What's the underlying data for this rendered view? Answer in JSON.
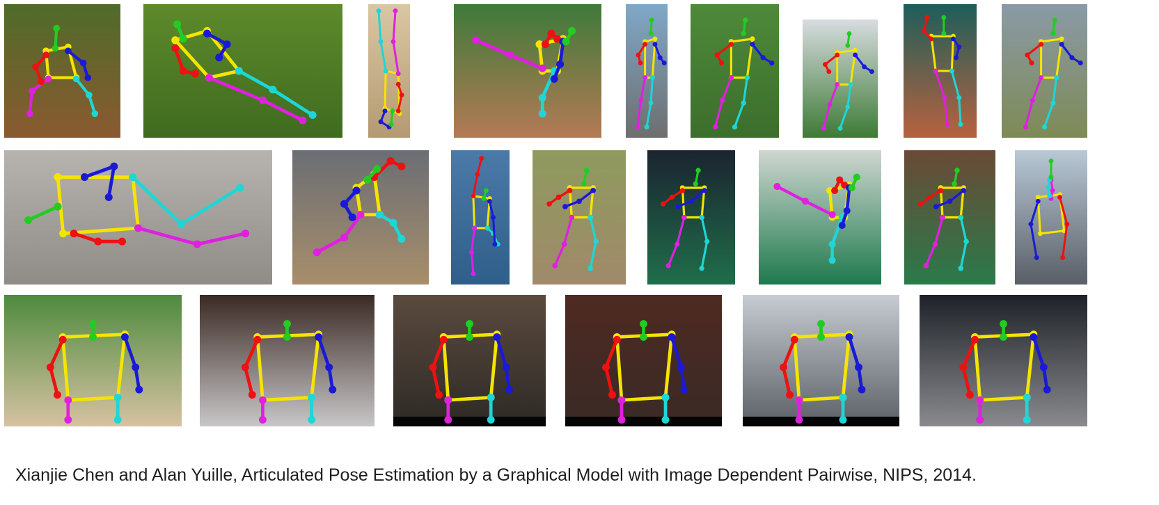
{
  "caption": "Xianjie Chen and Alan Yuille, Articulated Pose Estimation by a Graphical Model with Image Dependent Pairwise, NIPS, 2014.",
  "limb_colors": {
    "head": "#22cc22",
    "torso": "#f5e400",
    "right_arm": "#ee1111",
    "left_arm": "#1a1ad6",
    "right_leg": "#e020e0",
    "left_leg": "#1ed6d6"
  },
  "panels": [
    {
      "row": 1,
      "index": 1,
      "bg": [
        "#4f6b2a",
        "#8a5a30"
      ],
      "pose": "crouch"
    },
    {
      "row": 1,
      "index": 2,
      "bg": [
        "#5e8a2c",
        "#3f6b1f"
      ],
      "pose": "lying"
    },
    {
      "row": 1,
      "index": 3,
      "bg": [
        "#d9c7a3",
        "#b49a72"
      ],
      "pose": "inverted"
    },
    {
      "row": 1,
      "index": 4,
      "bg": [
        "#3e7a3a",
        "#b47a55"
      ],
      "pose": "kick"
    },
    {
      "row": 1,
      "index": 5,
      "bg": [
        "#7fa8c8",
        "#6e6e6e"
      ],
      "pose": "reach"
    },
    {
      "row": 1,
      "index": 6,
      "bg": [
        "#4e8a3a",
        "#3c6e2c"
      ],
      "pose": "reach"
    },
    {
      "row": 1,
      "index": 7,
      "bg": [
        "#d8dce0",
        "#3d7a36"
      ],
      "pose": "reach"
    },
    {
      "row": 1,
      "index": 8,
      "bg": [
        "#1d5e5a",
        "#b7623f"
      ],
      "pose": "stand"
    },
    {
      "row": 1,
      "index": 9,
      "bg": [
        "#8a9aa6",
        "#7e8a56"
      ],
      "pose": "reach"
    },
    {
      "row": 2,
      "index": 1,
      "bg": [
        "#b7b3ae",
        "#8f8c88"
      ],
      "pose": "horizontal"
    },
    {
      "row": 2,
      "index": 2,
      "bg": [
        "#6a6e74",
        "#a88e6a"
      ],
      "pose": "leap"
    },
    {
      "row": 2,
      "index": 3,
      "bg": [
        "#4c7aa8",
        "#2e5e8a"
      ],
      "pose": "climb"
    },
    {
      "row": 2,
      "index": 4,
      "bg": [
        "#8e9a5e",
        "#a08a6a"
      ],
      "pose": "lunge"
    },
    {
      "row": 2,
      "index": 5,
      "bg": [
        "#1b2430",
        "#1f6e4a"
      ],
      "pose": "lunge"
    },
    {
      "row": 2,
      "index": 6,
      "bg": [
        "#cfd6d0",
        "#1e7a4e"
      ],
      "pose": "kick"
    },
    {
      "row": 2,
      "index": 7,
      "bg": [
        "#6a4a36",
        "#2a7a4a"
      ],
      "pose": "lunge"
    },
    {
      "row": 2,
      "index": 8,
      "bg": [
        "#b8c8d6",
        "#5a5e66"
      ],
      "pose": "statue"
    },
    {
      "row": 3,
      "index": 1,
      "bg": [
        "#4e8a3e",
        "#d6c2a2"
      ],
      "pose": "upper"
    },
    {
      "row": 3,
      "index": 2,
      "bg": [
        "#3a2a24",
        "#c8c6c8"
      ],
      "pose": "upper"
    },
    {
      "row": 3,
      "index": 3,
      "bg": [
        "#5a4a3e",
        "#2e2a26"
      ],
      "pose": "upper"
    },
    {
      "row": 3,
      "index": 4,
      "bg": [
        "#4e2a22",
        "#3a2a26"
      ],
      "pose": "upper"
    },
    {
      "row": 3,
      "index": 5,
      "bg": [
        "#c6ccd2",
        "#5a6066"
      ],
      "pose": "upper"
    },
    {
      "row": 3,
      "index": 6,
      "bg": [
        "#1e2228",
        "#8a8a8e"
      ],
      "pose": "upper"
    }
  ]
}
